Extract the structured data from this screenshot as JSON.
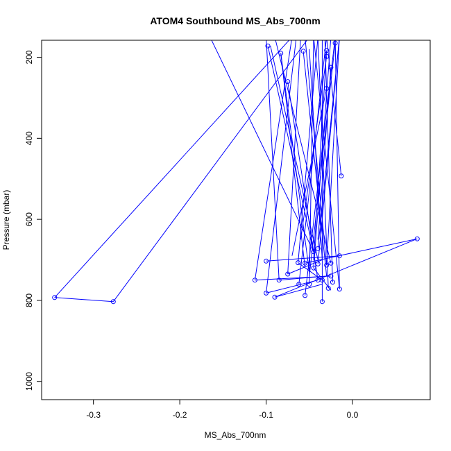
{
  "chart_data": {
    "type": "line",
    "title": "ATOM4 Southbound MS_Abs_700nm",
    "xlabel": "MS_Abs_700nm",
    "ylabel": "Pressure (mbar)",
    "xlim": [
      -0.36,
      0.09
    ],
    "ylim": [
      1045,
      158
    ],
    "y_reversed": true,
    "x_ticks": [
      -0.3,
      -0.2,
      -0.1,
      0.0
    ],
    "x_tick_labels": [
      "-0.3",
      "-0.2",
      "-0.1",
      "0.0"
    ],
    "y_ticks": [
      200,
      400,
      600,
      800,
      1000
    ],
    "y_tick_labels": [
      "200",
      "400",
      "600",
      "800",
      "1000"
    ],
    "grid": false,
    "series_color": "#0000ff",
    "series": [
      {
        "x": [
          -0.345,
          -0.277
        ],
        "y": [
          793,
          803
        ]
      },
      {
        "x": [
          -0.345,
          -0.07
        ],
        "y": [
          793,
          150
        ]
      },
      {
        "x": [
          -0.277,
          -0.05
        ],
        "y": [
          803,
          150
        ]
      },
      {
        "x": [
          -0.165,
          -0.045
        ],
        "y": [
          150,
          680
        ]
      },
      {
        "x": [
          0.075,
          -0.055
        ],
        "y": [
          648,
          708
        ]
      },
      {
        "x": [
          0.075,
          -0.09
        ],
        "y": [
          648,
          792
        ]
      },
      {
        "x": [
          -0.113,
          -0.07
        ],
        "y": [
          750,
          150
        ]
      },
      {
        "x": [
          -0.113,
          -0.025
        ],
        "y": [
          750,
          740
        ]
      },
      {
        "x": [
          -0.1,
          -0.015
        ],
        "y": [
          703,
          690
        ]
      },
      {
        "x": [
          -0.1,
          -0.065
        ],
        "y": [
          782,
          150
        ]
      },
      {
        "x": [
          -0.1,
          -0.04
        ],
        "y": [
          782,
          750
        ]
      },
      {
        "x": [
          -0.09,
          -0.035
        ],
        "y": [
          792,
          760
        ]
      },
      {
        "x": [
          -0.085,
          -0.03
        ],
        "y": [
          750,
          740
        ]
      },
      {
        "x": [
          -0.085,
          -0.1
        ],
        "y": [
          750,
          150
        ]
      },
      {
        "x": [
          -0.075,
          -0.035
        ],
        "y": [
          735,
          700
        ]
      },
      {
        "x": [
          -0.075,
          -0.06
        ],
        "y": [
          735,
          150
        ]
      },
      {
        "x": [
          -0.063,
          -0.035
        ],
        "y": [
          707,
          750
        ]
      },
      {
        "x": [
          -0.063,
          -0.04
        ],
        "y": [
          707,
          150
        ]
      },
      {
        "x": [
          -0.062,
          -0.03
        ],
        "y": [
          760,
          150
        ]
      },
      {
        "x": [
          -0.055,
          -0.02
        ],
        "y": [
          788,
          150
        ]
      },
      {
        "x": [
          -0.05,
          -0.045
        ],
        "y": [
          760,
          150
        ]
      },
      {
        "x": [
          -0.045,
          -0.025
        ],
        "y": [
          720,
          150
        ]
      },
      {
        "x": [
          -0.045,
          -0.025
        ],
        "y": [
          720,
          775
        ]
      },
      {
        "x": [
          -0.04,
          -0.015
        ],
        "y": [
          710,
          150
        ]
      },
      {
        "x": [
          -0.04,
          -0.015
        ],
        "y": [
          672,
          150
        ]
      },
      {
        "x": [
          -0.035,
          -0.035
        ],
        "y": [
          803,
          150
        ]
      },
      {
        "x": [
          -0.03,
          -0.015
        ],
        "y": [
          713,
          150
        ]
      },
      {
        "x": [
          -0.03,
          -0.055
        ],
        "y": [
          713,
          150
        ]
      },
      {
        "x": [
          -0.028,
          -0.04
        ],
        "y": [
          770,
          150
        ]
      },
      {
        "x": [
          -0.025,
          -0.09
        ],
        "y": [
          708,
          150
        ]
      },
      {
        "x": [
          -0.023,
          -0.032
        ],
        "y": [
          755,
          150
        ]
      },
      {
        "x": [
          -0.015,
          -0.02
        ],
        "y": [
          772,
          150
        ]
      },
      {
        "x": [
          -0.015,
          -0.045
        ],
        "y": [
          772,
          150
        ]
      },
      {
        "x": [
          -0.013,
          -0.03
        ],
        "y": [
          493,
          150
        ]
      },
      {
        "x": [
          -0.098,
          -0.045
        ],
        "y": [
          172,
          680
        ]
      },
      {
        "x": [
          -0.095,
          -0.04
        ],
        "y": [
          172,
          700
        ]
      },
      {
        "x": [
          -0.083,
          -0.05
        ],
        "y": [
          190,
          730
        ]
      },
      {
        "x": [
          -0.083,
          -0.055
        ],
        "y": [
          190,
          720
        ]
      },
      {
        "x": [
          -0.075,
          -0.04
        ],
        "y": [
          260,
          750
        ]
      },
      {
        "x": [
          -0.057,
          -0.03
        ],
        "y": [
          185,
          740
        ]
      },
      {
        "x": [
          -0.05,
          -0.035
        ],
        "y": [
          180,
          700
        ]
      },
      {
        "x": [
          -0.03,
          -0.045
        ],
        "y": [
          183,
          700
        ]
      },
      {
        "x": [
          -0.03,
          -0.06
        ],
        "y": [
          198,
          650
        ]
      },
      {
        "x": [
          -0.03,
          -0.07
        ],
        "y": [
          277,
          690
        ]
      },
      {
        "x": [
          -0.025,
          -0.04
        ],
        "y": [
          225,
          650
        ]
      },
      {
        "x": [
          -0.02,
          -0.05
        ],
        "y": [
          165,
          740
        ]
      }
    ],
    "markers": [
      {
        "x": -0.345,
        "y": 793
      },
      {
        "x": -0.277,
        "y": 803
      },
      {
        "x": 0.075,
        "y": 648
      },
      {
        "x": -0.113,
        "y": 750
      },
      {
        "x": -0.1,
        "y": 703
      },
      {
        "x": -0.1,
        "y": 782
      },
      {
        "x": -0.09,
        "y": 792
      },
      {
        "x": -0.085,
        "y": 750
      },
      {
        "x": -0.075,
        "y": 735
      },
      {
        "x": -0.063,
        "y": 707
      },
      {
        "x": -0.062,
        "y": 760
      },
      {
        "x": -0.055,
        "y": 788
      },
      {
        "x": -0.055,
        "y": 708
      },
      {
        "x": -0.05,
        "y": 760
      },
      {
        "x": -0.045,
        "y": 720
      },
      {
        "x": -0.045,
        "y": 680
      },
      {
        "x": -0.04,
        "y": 710
      },
      {
        "x": -0.04,
        "y": 672
      },
      {
        "x": -0.04,
        "y": 750
      },
      {
        "x": -0.035,
        "y": 803
      },
      {
        "x": -0.035,
        "y": 750
      },
      {
        "x": -0.03,
        "y": 713
      },
      {
        "x": -0.028,
        "y": 770
      },
      {
        "x": -0.025,
        "y": 708
      },
      {
        "x": -0.025,
        "y": 740
      },
      {
        "x": -0.023,
        "y": 755
      },
      {
        "x": -0.015,
        "y": 772
      },
      {
        "x": -0.015,
        "y": 690
      },
      {
        "x": -0.013,
        "y": 493
      },
      {
        "x": -0.098,
        "y": 172
      },
      {
        "x": -0.083,
        "y": 190
      },
      {
        "x": -0.075,
        "y": 260
      },
      {
        "x": -0.057,
        "y": 185
      },
      {
        "x": -0.03,
        "y": 183
      },
      {
        "x": -0.03,
        "y": 198
      },
      {
        "x": -0.03,
        "y": 277
      },
      {
        "x": -0.025,
        "y": 225
      },
      {
        "x": -0.02,
        "y": 165
      }
    ]
  }
}
